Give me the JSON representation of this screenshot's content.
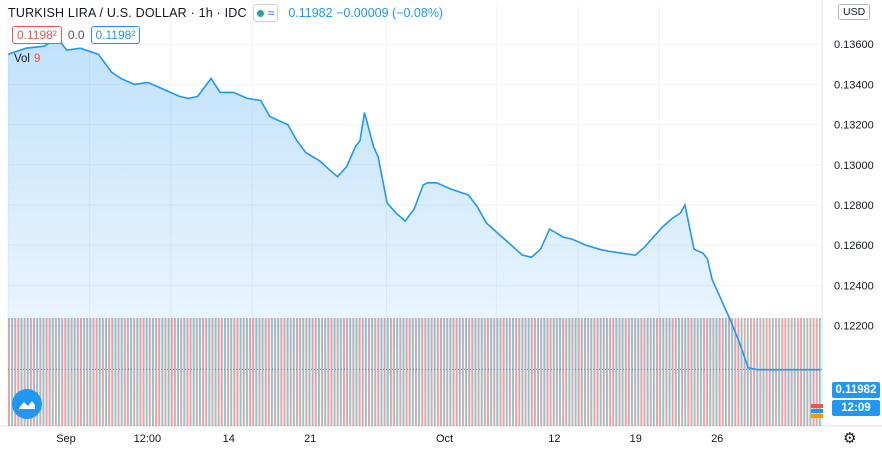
{
  "legend": {
    "title": "TURKISH LIRA / U.S. DOLLAR · 1h · IDC",
    "toggle_icon": "wave-icon",
    "last": "0.11982",
    "change": "−0.00009",
    "change_pct": "(−0.08%)"
  },
  "ohlc": {
    "left": "0.1198²",
    "mid": "0.0",
    "right": "0.1198²"
  },
  "vol": {
    "label": "Vol",
    "value": "9"
  },
  "currency": "USD",
  "last_badge": "0.11982",
  "time_badge": "12:09",
  "colors": {
    "line": "#2196f3",
    "vol_up": "#26a69a",
    "vol_down": "#ef5350"
  },
  "chart_data": {
    "type": "area",
    "ylim": [
      0.117,
      0.138
    ],
    "y_ticks": [
      "0.13600",
      "0.13400",
      "0.13200",
      "0.13000",
      "0.12800",
      "0.12600",
      "0.12400",
      "0.12200"
    ],
    "x_ticks": [
      "Sep",
      "12:00",
      "14",
      "21",
      "Oct",
      "12",
      "19",
      "26"
    ],
    "x_tick_pos": [
      0.0,
      0.1,
      0.2,
      0.3,
      0.465,
      0.6,
      0.7,
      0.8
    ],
    "x": [
      0.0,
      0.02,
      0.04,
      0.055,
      0.065,
      0.08,
      0.1,
      0.115,
      0.125,
      0.14,
      0.155,
      0.175,
      0.19,
      0.2,
      0.21,
      0.225,
      0.235,
      0.25,
      0.265,
      0.28,
      0.29,
      0.3,
      0.31,
      0.32,
      0.33,
      0.345,
      0.355,
      0.365,
      0.375,
      0.385,
      0.39,
      0.395,
      0.405,
      0.41,
      0.42,
      0.43,
      0.44,
      0.45,
      0.455,
      0.46,
      0.465,
      0.475,
      0.49,
      0.51,
      0.52,
      0.53,
      0.545,
      0.555,
      0.565,
      0.57,
      0.58,
      0.59,
      0.6,
      0.615,
      0.625,
      0.64,
      0.655,
      0.665,
      0.68,
      0.695,
      0.705,
      0.715,
      0.725,
      0.735,
      0.745,
      0.75,
      0.76,
      0.77,
      0.775,
      0.78,
      0.79,
      0.8,
      0.81,
      0.82,
      0.83,
      0.845,
      0.86,
      0.875,
      0.885,
      0.895,
      0.9
    ],
    "values": [
      0.1355,
      0.1358,
      0.1359,
      0.1363,
      0.1357,
      0.1358,
      0.1355,
      0.1346,
      0.1343,
      0.134,
      0.1341,
      0.1337,
      0.1334,
      0.1333,
      0.1334,
      0.1343,
      0.1336,
      0.1336,
      0.1333,
      0.1332,
      0.1324,
      0.1322,
      0.132,
      0.1312,
      0.1306,
      0.1302,
      0.1298,
      0.1294,
      0.1299,
      0.1309,
      0.1312,
      0.1326,
      0.1309,
      0.1304,
      0.1281,
      0.1276,
      0.1272,
      0.1278,
      0.1284,
      0.129,
      0.1291,
      0.1291,
      0.1288,
      0.1285,
      0.1279,
      0.1271,
      0.1265,
      0.1261,
      0.1257,
      0.1255,
      0.1254,
      0.1258,
      0.1268,
      0.1264,
      0.1263,
      0.126,
      0.1258,
      0.1257,
      0.1256,
      0.1255,
      0.1259,
      0.1264,
      0.1269,
      0.1273,
      0.1276,
      0.128,
      0.1258,
      0.1256,
      0.1253,
      0.1243,
      0.1233,
      0.1223,
      0.1212,
      0.1199,
      0.1198,
      0.1198,
      0.1198,
      0.1198,
      0.1198,
      0.1198,
      0.1198
    ],
    "grid": true
  }
}
